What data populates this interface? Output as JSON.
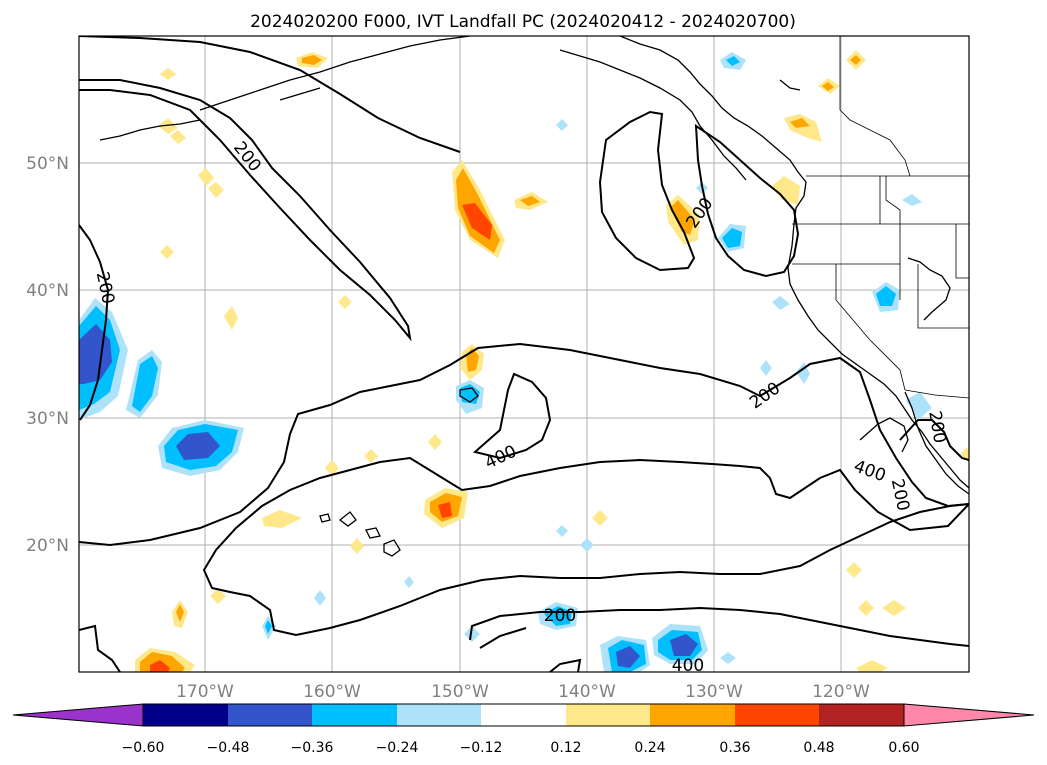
{
  "title": "2024020200 F000, IVT Landfall PC (2024020412 - 2024020700)",
  "lat_labels": [
    "50°N",
    "40°N",
    "30°N",
    "20°N"
  ],
  "lon_labels": [
    "170°W",
    "160°W",
    "150°W",
    "140°W",
    "130°W",
    "120°W"
  ],
  "contour_labels": [
    "200",
    "200",
    "200",
    "200",
    "400",
    "200",
    "400",
    "200",
    "200",
    "400"
  ],
  "colorbar": {
    "ticks": [
      "−0.60",
      "−0.48",
      "−0.36",
      "−0.24",
      "−0.12",
      "0.12",
      "0.24",
      "0.36",
      "0.48",
      "0.60"
    ],
    "colors": [
      "#9933cc",
      "#00008b",
      "#3355cc",
      "#00bfff",
      "#aee2fa",
      "#ffffff",
      "#ffe88a",
      "#ffa500",
      "#ff4500",
      "#b22222",
      "#ff88aa"
    ]
  },
  "colors": {
    "pos_low": "#ffe88a",
    "pos_mid": "#ffa500",
    "pos_high": "#ff4500",
    "neg_low": "#aee2fa",
    "neg_mid": "#00bfff",
    "neg_high": "#3355cc"
  }
}
